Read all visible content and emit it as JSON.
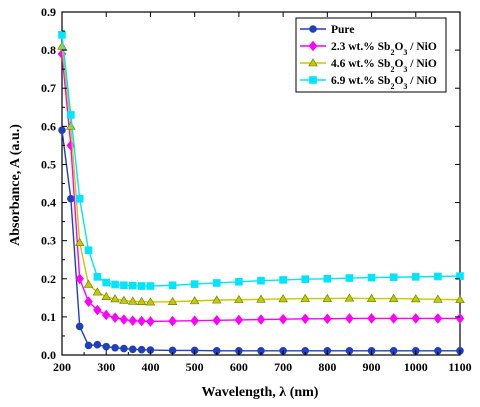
{
  "chart_data": {
    "type": "line",
    "xlabel": "Wavelength, λ (nm)",
    "ylabel": "Absorbance, A (a.u.)",
    "xlim": [
      200,
      1100
    ],
    "ylim": [
      0.0,
      0.9
    ],
    "xticks": [
      "200",
      "300",
      "400",
      "500",
      "600",
      "700",
      "800",
      "900",
      "1000",
      "1100"
    ],
    "yticks": [
      "0.0",
      "0.1",
      "0.2",
      "0.3",
      "0.4",
      "0.5",
      "0.6",
      "0.7",
      "0.8",
      "0.9"
    ],
    "grid": false,
    "legend_position": "top-right",
    "series": [
      {
        "name": "Pure",
        "legend_parts": [],
        "color": "#1f3fbf",
        "marker": "circle",
        "x": [
          200,
          220,
          240,
          260,
          280,
          300,
          320,
          340,
          360,
          380,
          400,
          450,
          500,
          550,
          600,
          650,
          700,
          750,
          800,
          850,
          900,
          950,
          1000,
          1050,
          1100
        ],
        "y": [
          0.59,
          0.41,
          0.075,
          0.025,
          0.027,
          0.022,
          0.019,
          0.017,
          0.015,
          0.014,
          0.013,
          0.012,
          0.012,
          0.011,
          0.011,
          0.011,
          0.011,
          0.011,
          0.011,
          0.011,
          0.011,
          0.011,
          0.011,
          0.011,
          0.011
        ]
      },
      {
        "name": "2.3 wt.% Sb2O3 / NiO",
        "legend_parts": [
          "2.3 wt.% Sb",
          "2",
          "O",
          "3",
          " / NiO"
        ],
        "color": "#ff00ff",
        "marker": "diamond",
        "x": [
          200,
          220,
          240,
          260,
          280,
          300,
          320,
          340,
          360,
          380,
          400,
          450,
          500,
          550,
          600,
          650,
          700,
          750,
          800,
          850,
          900,
          950,
          1000,
          1050,
          1100
        ],
        "y": [
          0.79,
          0.55,
          0.2,
          0.14,
          0.118,
          0.105,
          0.098,
          0.093,
          0.09,
          0.089,
          0.088,
          0.089,
          0.09,
          0.091,
          0.092,
          0.093,
          0.094,
          0.095,
          0.095,
          0.096,
          0.096,
          0.096,
          0.096,
          0.096,
          0.096
        ]
      },
      {
        "name": "4.6 wt.% Sb2O3 / NiO",
        "legend_parts": [
          "4.6 wt.% Sb",
          "2",
          "O",
          "3",
          " / NiO"
        ],
        "color": "#c8c800",
        "marker": "triangle",
        "x": [
          200,
          220,
          240,
          260,
          280,
          300,
          320,
          340,
          360,
          380,
          400,
          450,
          500,
          550,
          600,
          650,
          700,
          750,
          800,
          850,
          900,
          950,
          1000,
          1050,
          1100
        ],
        "y": [
          0.81,
          0.6,
          0.295,
          0.185,
          0.165,
          0.153,
          0.147,
          0.143,
          0.141,
          0.14,
          0.139,
          0.14,
          0.142,
          0.144,
          0.145,
          0.146,
          0.147,
          0.148,
          0.148,
          0.149,
          0.148,
          0.148,
          0.147,
          0.146,
          0.145
        ]
      },
      {
        "name": "6.9 wt.% Sb2O3 / NiO",
        "legend_parts": [
          "6.9 wt.% Sb",
          "2",
          "O",
          "3",
          " / NiO"
        ],
        "color": "#00e5ff",
        "marker": "square",
        "x": [
          200,
          220,
          240,
          260,
          280,
          300,
          320,
          340,
          360,
          380,
          400,
          450,
          500,
          550,
          600,
          650,
          700,
          750,
          800,
          850,
          900,
          950,
          1000,
          1050,
          1100
        ],
        "y": [
          0.84,
          0.63,
          0.41,
          0.275,
          0.205,
          0.19,
          0.185,
          0.183,
          0.182,
          0.181,
          0.181,
          0.183,
          0.186,
          0.189,
          0.192,
          0.195,
          0.197,
          0.199,
          0.2,
          0.202,
          0.203,
          0.204,
          0.205,
          0.206,
          0.207
        ]
      }
    ]
  }
}
